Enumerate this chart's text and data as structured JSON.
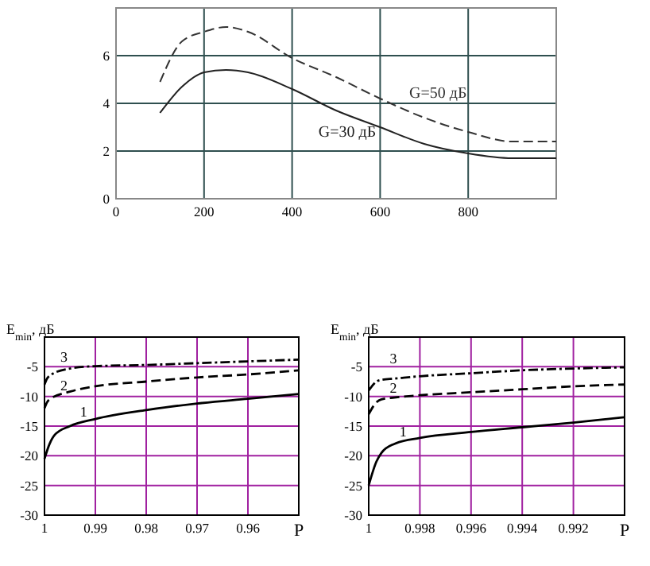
{
  "chart_data": [
    {
      "type": "line",
      "xlim": [
        0,
        1000
      ],
      "xticks": [
        0,
        200,
        400,
        600,
        800
      ],
      "ylim": [
        0,
        8
      ],
      "yticks": [
        0,
        2,
        4,
        6
      ],
      "grid": true,
      "series": [
        {
          "name": "G=50 дБ",
          "color": "#333333",
          "line_style": "dashed",
          "x": [
            100,
            150,
            200,
            250,
            300,
            400,
            500,
            600,
            700,
            800,
            900,
            1000
          ],
          "values": [
            4.9,
            6.6,
            7.0,
            7.2,
            7.0,
            5.9,
            5.1,
            4.2,
            3.4,
            2.8,
            2.4,
            2.4
          ]
        },
        {
          "name": "G=30 дБ",
          "color": "#222222",
          "line_style": "solid",
          "x": [
            100,
            150,
            200,
            250,
            300,
            400,
            500,
            600,
            700,
            800,
            900,
            1000
          ],
          "values": [
            3.6,
            4.7,
            5.3,
            5.4,
            5.3,
            4.6,
            3.7,
            3.0,
            2.3,
            1.9,
            1.7,
            1.7
          ]
        }
      ]
    },
    {
      "type": "line",
      "xlabel": "P",
      "ylabel": "E$_{min}$, дБ",
      "xlim": [
        1,
        0.95
      ],
      "xticks": [
        1,
        0.99,
        0.98,
        0.97,
        0.96
      ],
      "ylim": [
        -30,
        0
      ],
      "yticks": [
        -30,
        -25,
        -20,
        -15,
        -10,
        -5
      ],
      "grid": true,
      "series": [
        {
          "name": "1",
          "color": "#000000",
          "line_style": "solid",
          "x": [
            1,
            0.999,
            0.998,
            0.995,
            0.99,
            0.98,
            0.97,
            0.96,
            0.95
          ],
          "values": [
            -20.5,
            -18,
            -16.5,
            -15,
            -13.8,
            -12.3,
            -11.2,
            -10.4,
            -9.6
          ]
        },
        {
          "name": "2",
          "color": "#000000",
          "line_style": "dashed",
          "x": [
            1,
            0.9995,
            0.999,
            0.995,
            0.99,
            0.98,
            0.97,
            0.96,
            0.95
          ],
          "values": [
            -12,
            -11,
            -10.5,
            -9.2,
            -8.3,
            -7.5,
            -6.8,
            -6.3,
            -5.6
          ]
        },
        {
          "name": "3",
          "color": "#000000",
          "line_style": "dotted",
          "x": [
            1,
            0.9995,
            0.999,
            0.995,
            0.99,
            0.98,
            0.97,
            0.96,
            0.95
          ],
          "values": [
            -8,
            -7,
            -6.5,
            -5.3,
            -4.9,
            -4.7,
            -4.4,
            -4.1,
            -3.8
          ]
        }
      ]
    },
    {
      "type": "line",
      "xlabel": "P",
      "ylabel": "E$_{min}$, дБ",
      "xlim": [
        1,
        0.99
      ],
      "xticks": [
        1,
        0.998,
        0.996,
        0.994,
        0.992
      ],
      "ylim": [
        -30,
        0
      ],
      "yticks": [
        -30,
        -25,
        -20,
        -15,
        -10,
        -5
      ],
      "grid": true,
      "series": [
        {
          "name": "1",
          "color": "#000000",
          "line_style": "solid",
          "x": [
            1,
            0.9997,
            0.9995,
            0.999,
            0.998,
            0.996,
            0.994,
            0.992,
            0.99
          ],
          "values": [
            -25,
            -21,
            -19.5,
            -18,
            -17,
            -16,
            -15.2,
            -14.4,
            -13.5
          ]
        },
        {
          "name": "2",
          "color": "#000000",
          "line_style": "dashed",
          "x": [
            1,
            0.9997,
            0.9995,
            0.999,
            0.998,
            0.996,
            0.994,
            0.992,
            0.99
          ],
          "values": [
            -13,
            -11,
            -10.5,
            -10.2,
            -9.8,
            -9.3,
            -8.8,
            -8.3,
            -8
          ]
        },
        {
          "name": "3",
          "color": "#000000",
          "line_style": "dotted",
          "x": [
            1,
            0.9997,
            0.9995,
            0.999,
            0.998,
            0.996,
            0.994,
            0.992,
            0.99
          ],
          "values": [
            -9,
            -7.5,
            -7.2,
            -7,
            -6.6,
            -6.1,
            -5.6,
            -5.3,
            -5.1
          ]
        }
      ]
    }
  ]
}
